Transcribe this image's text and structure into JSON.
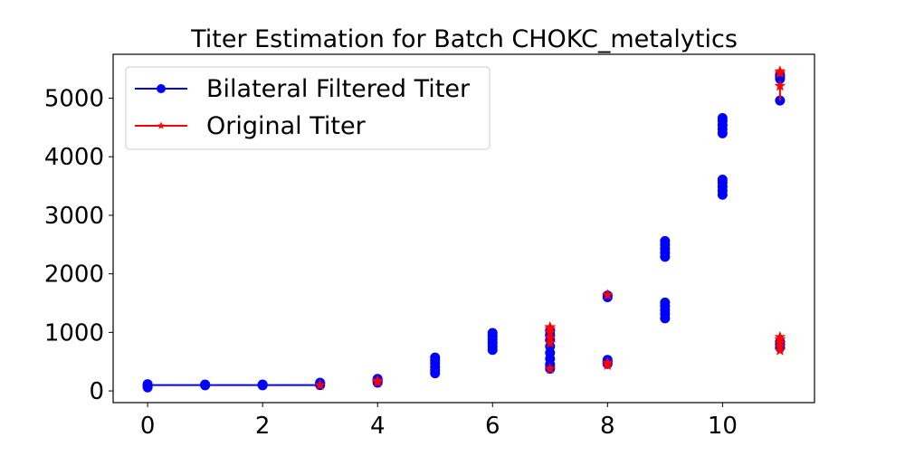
{
  "chart_data": {
    "type": "scatter",
    "title": "Titer Estimation for Batch CHOKC_metalytics",
    "xlabel": "",
    "ylabel": "",
    "xlim": [
      -0.6,
      11.6
    ],
    "ylim": [
      -200,
      5750
    ],
    "x_ticks": [
      0,
      2,
      4,
      6,
      8,
      10
    ],
    "y_ticks": [
      0,
      1000,
      2000,
      3000,
      4000,
      5000
    ],
    "grid": false,
    "legend_position": "top-left",
    "series": [
      {
        "name": "Bilateral Filtered Titer",
        "color": "#0000ff",
        "marker": "circle",
        "points": [
          [
            0,
            60
          ],
          [
            0,
            80
          ],
          [
            0,
            100
          ],
          [
            0,
            115
          ],
          [
            1,
            95
          ],
          [
            1,
            100
          ],
          [
            1,
            110
          ],
          [
            2,
            95
          ],
          [
            2,
            100
          ],
          [
            2,
            110
          ],
          [
            3,
            100
          ],
          [
            3,
            120
          ],
          [
            3,
            140
          ],
          [
            4,
            140
          ],
          [
            4,
            165
          ],
          [
            4,
            185
          ],
          [
            4,
            205
          ],
          [
            5,
            300
          ],
          [
            5,
            350
          ],
          [
            5,
            410
          ],
          [
            5,
            470
          ],
          [
            5,
            520
          ],
          [
            5,
            570
          ],
          [
            6,
            700
          ],
          [
            6,
            760
          ],
          [
            6,
            820
          ],
          [
            6,
            880
          ],
          [
            6,
            940
          ],
          [
            6,
            990
          ],
          [
            7,
            380
          ],
          [
            7,
            450
          ],
          [
            7,
            550
          ],
          [
            7,
            650
          ],
          [
            7,
            760
          ],
          [
            7,
            870
          ],
          [
            7,
            960
          ],
          [
            7,
            1030
          ],
          [
            8,
            460
          ],
          [
            8,
            500
          ],
          [
            8,
            530
          ],
          [
            8,
            1600
          ],
          [
            8,
            1630
          ],
          [
            9,
            1240
          ],
          [
            9,
            1310
          ],
          [
            9,
            1380
          ],
          [
            9,
            1450
          ],
          [
            9,
            1510
          ],
          [
            9,
            2290
          ],
          [
            9,
            2360
          ],
          [
            9,
            2430
          ],
          [
            9,
            2500
          ],
          [
            9,
            2560
          ],
          [
            10,
            3350
          ],
          [
            10,
            3420
          ],
          [
            10,
            3490
          ],
          [
            10,
            3560
          ],
          [
            10,
            3610
          ],
          [
            10,
            4400
          ],
          [
            10,
            4470
          ],
          [
            10,
            4540
          ],
          [
            10,
            4610
          ],
          [
            10,
            4660
          ],
          [
            11,
            740
          ],
          [
            11,
            790
          ],
          [
            11,
            840
          ],
          [
            11,
            4960
          ],
          [
            11,
            5330
          ],
          [
            11,
            5370
          ],
          [
            11,
            5400
          ]
        ],
        "line": {
          "x": [
            0,
            3
          ],
          "y": [
            100,
            100
          ]
        }
      },
      {
        "name": "Original Titer",
        "color": "#ff0000",
        "marker": "star",
        "points": [
          [
            3,
            100
          ],
          [
            4,
            150
          ],
          [
            4,
            175
          ],
          [
            7,
            380
          ],
          [
            7,
            820
          ],
          [
            7,
            900
          ],
          [
            7,
            1000
          ],
          [
            7,
            1060
          ],
          [
            7,
            1090
          ],
          [
            8,
            440
          ],
          [
            8,
            480
          ],
          [
            8,
            1640
          ],
          [
            11,
            690
          ],
          [
            11,
            760
          ],
          [
            11,
            820
          ],
          [
            11,
            880
          ],
          [
            11,
            920
          ],
          [
            11,
            5210
          ],
          [
            11,
            5430
          ],
          [
            11,
            5460
          ]
        ],
        "segments": [
          {
            "x": 11,
            "y": [
              4960,
              5200
            ]
          },
          {
            "x": 11,
            "y": [
              690,
              920
            ]
          },
          {
            "x": 7,
            "y": [
              820,
              1090
            ]
          }
        ]
      }
    ]
  }
}
